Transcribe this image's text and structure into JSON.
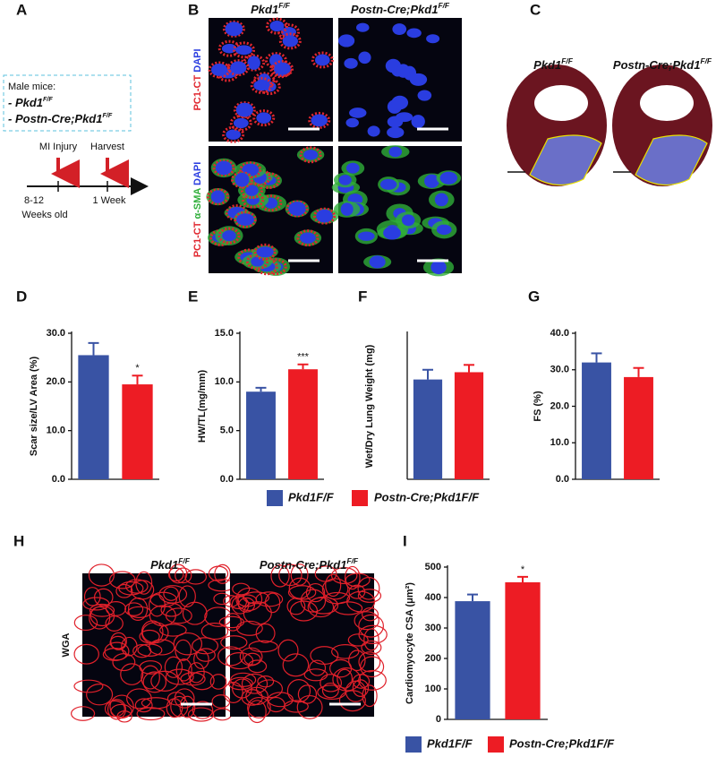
{
  "panels": {
    "letters": [
      "A",
      "B",
      "C",
      "D",
      "E",
      "F",
      "G",
      "H",
      "I"
    ],
    "a": {
      "box_title": "Male mice:",
      "box_items": [
        {
          "prefix": "- ",
          "main": "Pkd1",
          "sup": "F/F"
        },
        {
          "prefix": "- ",
          "main": "Postn-Cre;Pkd1",
          "sup": "F/F"
        }
      ],
      "events": [
        "MI Injury",
        "Harvest"
      ],
      "start": "8-12",
      "start_sub": "Weeks old",
      "end": "1 Week"
    },
    "b": {
      "columns": [
        {
          "main": "Pkd1",
          "sup": "F/F"
        },
        {
          "main": "Postn-Cre;Pkd1",
          "sup": "F/F"
        }
      ],
      "row1": [
        "PC1-CT",
        "DAPI"
      ],
      "row2": [
        "PC1-CT",
        "α-SMA",
        "DAPI"
      ]
    },
    "c": {
      "columns": [
        {
          "main": "Pkd1",
          "sup": "F/F"
        },
        {
          "main": "Postn-Cre;Pkd1",
          "sup": "F/F"
        }
      ]
    },
    "h": {
      "columns": [
        {
          "main": "Pkd1",
          "sup": "F/F"
        },
        {
          "main": "Postn-Cre;Pkd1",
          "sup": "F/F"
        }
      ],
      "stain": "WGA"
    }
  },
  "chart_data": [
    {
      "type": "bar",
      "y_label": "Scar size/LV Area (%)",
      "ylim": [
        0,
        30
      ],
      "yticks": [
        {
          "value": 0,
          "label": "0.0"
        },
        {
          "value": 10,
          "label": "10.0"
        },
        {
          "value": 20,
          "label": "20.0"
        },
        {
          "value": 30,
          "label": "30.0"
        }
      ],
      "series": [
        {
          "name": "Pkd1F/F",
          "color": "#3953a4",
          "values": [
            25.5
          ],
          "errors": [
            2.5
          ]
        },
        {
          "name": "Postn-Cre;Pkd1F/F",
          "color": "#ed1c24",
          "values": [
            19.5
          ],
          "errors": [
            1.8
          ]
        }
      ],
      "annotation": "*"
    },
    {
      "type": "bar",
      "y_label": "HW/TL(mg/mm)",
      "ylim": [
        0,
        15
      ],
      "yticks": [
        {
          "value": 0,
          "label": "0.0"
        },
        {
          "value": 5,
          "label": "5.0"
        },
        {
          "value": 10,
          "label": "10.0"
        },
        {
          "value": 15,
          "label": "15.0"
        }
      ],
      "series": [
        {
          "name": "Pkd1F/F",
          "color": "#3953a4",
          "values": [
            9.0
          ],
          "errors": [
            0.4
          ]
        },
        {
          "name": "Postn-Cre;Pkd1F/F",
          "color": "#ed1c24",
          "values": [
            11.3
          ],
          "errors": [
            0.5
          ]
        }
      ],
      "annotation": "***"
    },
    {
      "type": "bar",
      "y_label": "Wet/Dry Lung Weight (mg)",
      "ylim": [
        0,
        6
      ],
      "series": [
        {
          "name": "Pkd1F/F",
          "color": "#3953a4",
          "values": [
            4.1
          ],
          "errors": [
            0.4
          ]
        },
        {
          "name": "Postn-Cre;Pkd1F/F",
          "color": "#ed1c24",
          "values": [
            4.4
          ],
          "errors": [
            0.3
          ]
        }
      ]
    },
    {
      "type": "bar",
      "y_label": "FS (%)",
      "ylim": [
        0,
        40
      ],
      "yticks": [
        {
          "value": 0,
          "label": "0.0"
        },
        {
          "value": 10,
          "label": "10.0"
        },
        {
          "value": 20,
          "label": "20.0"
        },
        {
          "value": 30,
          "label": "30.0"
        },
        {
          "value": 40,
          "label": "40.0"
        }
      ],
      "series": [
        {
          "name": "Pkd1F/F",
          "color": "#3953a4",
          "values": [
            32
          ],
          "errors": [
            2.5
          ]
        },
        {
          "name": "Postn-Cre;Pkd1F/F",
          "color": "#ed1c24",
          "values": [
            28
          ],
          "errors": [
            2.5
          ]
        }
      ]
    },
    {
      "type": "bar",
      "y_label": "Cardiomyocyte CSA (μm²)",
      "ylim": [
        0,
        500
      ],
      "yticks": [
        0,
        100,
        200,
        300,
        400,
        500
      ],
      "series": [
        {
          "name": "Pkd1F/F",
          "color": "#3953a4",
          "values": [
            388
          ],
          "errors": [
            22
          ]
        },
        {
          "name": "Postn-Cre;Pkd1F/F",
          "color": "#ed1c24",
          "values": [
            450
          ],
          "errors": [
            18
          ]
        }
      ],
      "annotation": "*"
    }
  ]
}
